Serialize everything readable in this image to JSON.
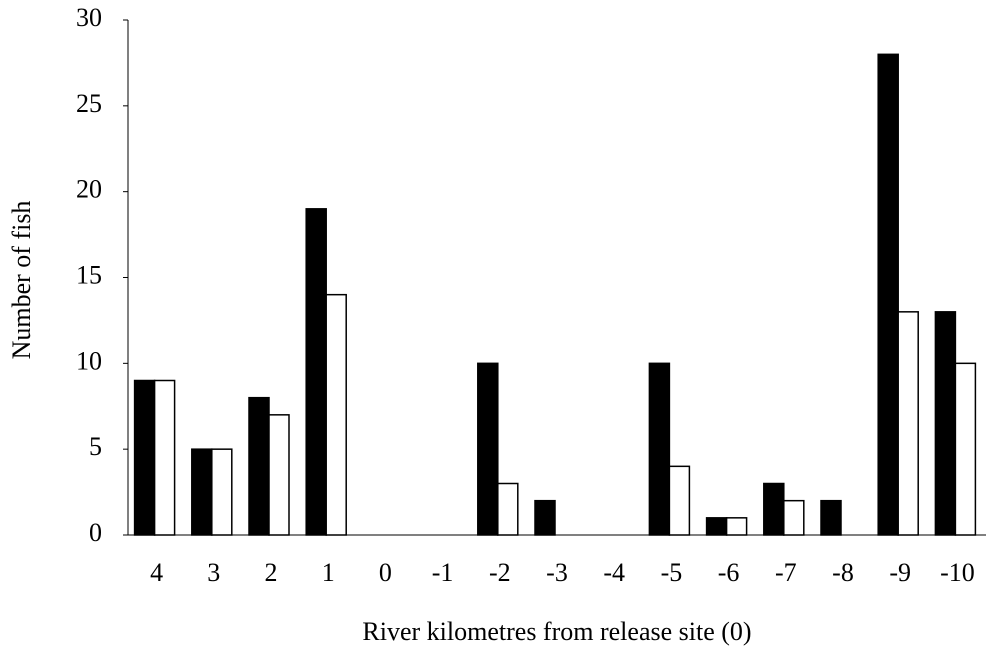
{
  "chart_data": {
    "type": "bar",
    "y_label": "Number of fish",
    "x_label": "River kilometres from release site (0)",
    "categories": [
      "4",
      "3",
      "2",
      "1",
      "0",
      "-1",
      "-2",
      "-3",
      "-4",
      "-5",
      "-6",
      "-7",
      "-8",
      "-9",
      "-10"
    ],
    "series": [
      {
        "color": "#000000",
        "values": [
          9,
          5,
          8,
          19,
          0,
          0,
          10,
          2,
          0,
          10,
          1,
          3,
          2,
          28,
          13
        ]
      },
      {
        "color": "#ffffff",
        "values": [
          9,
          5,
          7,
          14,
          0,
          0,
          3,
          0,
          0,
          4,
          1,
          2,
          0,
          13,
          10
        ]
      }
    ],
    "ylim": [
      0,
      30
    ],
    "yticks": [
      0,
      5,
      10,
      15,
      20,
      25,
      30
    ],
    "grid": false
  }
}
